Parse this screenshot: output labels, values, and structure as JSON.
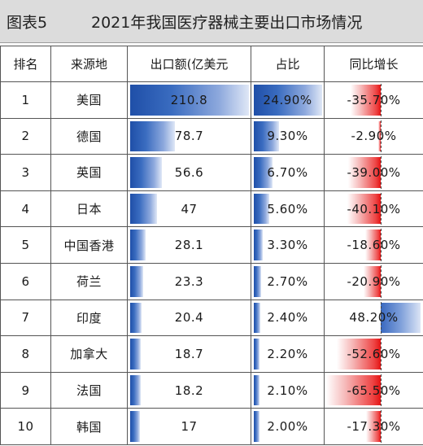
{
  "header": {
    "figure_no": "图表5",
    "title": "2021年我国医疗器械主要出口市场情况"
  },
  "colors": {
    "value_bar": "#1f4fa8",
    "negative_bar": "#e31414",
    "positive_bar": "#3868bf",
    "title_background": "#dcdcdc"
  },
  "chart_data": {
    "type": "table",
    "columns": [
      "排名",
      "来源地",
      "出口额(亿美元",
      "占比",
      "同比增长"
    ],
    "rows": [
      {
        "rank": "1",
        "source": "美国",
        "value": "210.8",
        "share": "24.90%",
        "growth": "-35.70%"
      },
      {
        "rank": "2",
        "source": "德国",
        "value": "78.7",
        "share": "9.30%",
        "growth": "-2.90%"
      },
      {
        "rank": "3",
        "source": "英国",
        "value": "56.6",
        "share": "6.70%",
        "growth": "-39.00%"
      },
      {
        "rank": "4",
        "source": "日本",
        "value": "47",
        "share": "5.60%",
        "growth": "-40.10%"
      },
      {
        "rank": "5",
        "source": "中国香港",
        "value": "28.1",
        "share": "3.30%",
        "growth": "-18.60%"
      },
      {
        "rank": "6",
        "source": "荷兰",
        "value": "23.3",
        "share": "2.70%",
        "growth": "-20.90%"
      },
      {
        "rank": "7",
        "source": "印度",
        "value": "20.4",
        "share": "2.40%",
        "growth": "48.20%"
      },
      {
        "rank": "8",
        "source": "加拿大",
        "value": "18.7",
        "share": "2.20%",
        "growth": "-52.60%"
      },
      {
        "rank": "9",
        "source": "法国",
        "value": "18.2",
        "share": "2.10%",
        "growth": "-65.50%"
      },
      {
        "rank": "10",
        "source": "韩国",
        "value": "17",
        "share": "2.00%",
        "growth": "-17.30%"
      }
    ],
    "value_max": 210.8,
    "share_max": 24.9,
    "growth_range": [
      -65.5,
      48.2
    ]
  }
}
